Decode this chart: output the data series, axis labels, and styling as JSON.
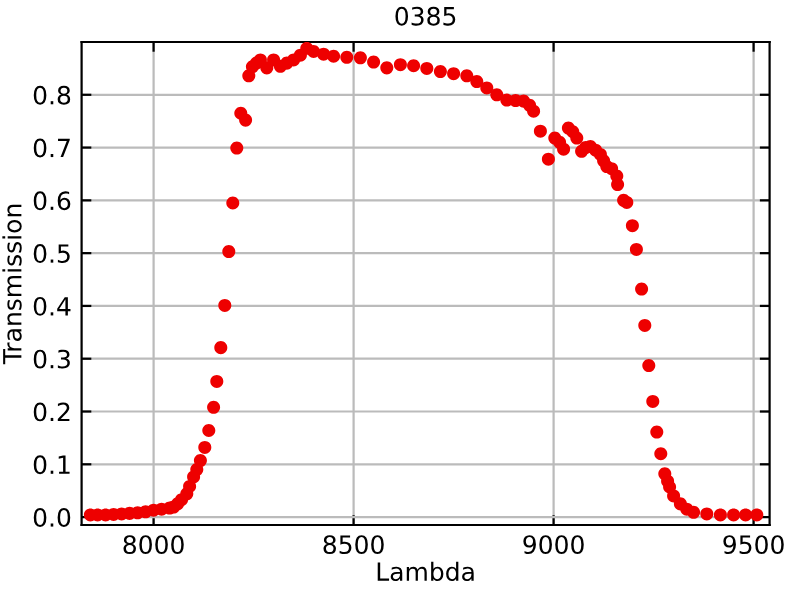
{
  "chart_data": {
    "type": "scatter",
    "title": "0385",
    "xlabel": "Lambda",
    "ylabel": "Transmission",
    "xlim": [
      7820,
      9540
    ],
    "ylim": [
      -0.015,
      0.9
    ],
    "xticks": [
      8000,
      8500,
      9000,
      9500
    ],
    "yticks": [
      {
        "value": 0.0,
        "label": "0.0"
      },
      0.1,
      0.2,
      0.3,
      0.4,
      0.5,
      0.6,
      0.7,
      0.8
    ],
    "grid": true,
    "marker": "circle",
    "legend": false,
    "series": [
      {
        "color": "#ee0000",
        "x": [
          7842,
          7860,
          7880,
          7900,
          7920,
          7940,
          7960,
          7980,
          8000,
          8020,
          8040,
          8050,
          8060,
          8070,
          8083,
          8090,
          8100,
          8108,
          8117,
          8128,
          8138,
          8150,
          8158,
          8168,
          8178,
          8188,
          8198,
          8208,
          8218,
          8230,
          8238,
          8247,
          8257,
          8267,
          8283,
          8300,
          8317,
          8333,
          8350,
          8367,
          8383,
          8400,
          8425,
          8450,
          8483,
          8517,
          8550,
          8583,
          8617,
          8650,
          8683,
          8717,
          8750,
          8783,
          8808,
          8833,
          8858,
          8883,
          8905,
          8925,
          8940,
          8950,
          8967,
          8987,
          9003,
          9015,
          9025,
          9037,
          9048,
          9058,
          9070,
          9080,
          9092,
          9105,
          9117,
          9125,
          9133,
          9145,
          9158,
          9160,
          9175,
          9183,
          9197,
          9207,
          9220,
          9228,
          9238,
          9248,
          9258,
          9268,
          9278,
          9285,
          9290,
          9300,
          9317,
          9333,
          9350,
          9383,
          9417,
          9450,
          9480,
          9508
        ],
        "values": [
          0.004,
          0.004,
          0.004,
          0.005,
          0.006,
          0.007,
          0.008,
          0.01,
          0.013,
          0.015,
          0.017,
          0.019,
          0.025,
          0.033,
          0.044,
          0.058,
          0.076,
          0.09,
          0.107,
          0.132,
          0.164,
          0.208,
          0.257,
          0.321,
          0.401,
          0.503,
          0.595,
          0.699,
          0.765,
          0.752,
          0.836,
          0.853,
          0.86,
          0.866,
          0.851,
          0.866,
          0.854,
          0.86,
          0.866,
          0.875,
          0.888,
          0.882,
          0.877,
          0.873,
          0.871,
          0.87,
          0.862,
          0.851,
          0.857,
          0.855,
          0.85,
          0.844,
          0.84,
          0.836,
          0.825,
          0.813,
          0.8,
          0.79,
          0.789,
          0.788,
          0.78,
          0.769,
          0.731,
          0.678,
          0.718,
          0.71,
          0.697,
          0.737,
          0.73,
          0.718,
          0.693,
          0.7,
          0.702,
          0.695,
          0.687,
          0.675,
          0.664,
          0.66,
          0.646,
          0.63,
          0.6,
          0.596,
          0.552,
          0.507,
          0.432,
          0.363,
          0.287,
          0.219,
          0.161,
          0.12,
          0.082,
          0.068,
          0.057,
          0.04,
          0.025,
          0.015,
          0.009,
          0.006,
          0.004,
          0.004,
          0.004,
          0.004
        ]
      }
    ]
  }
}
